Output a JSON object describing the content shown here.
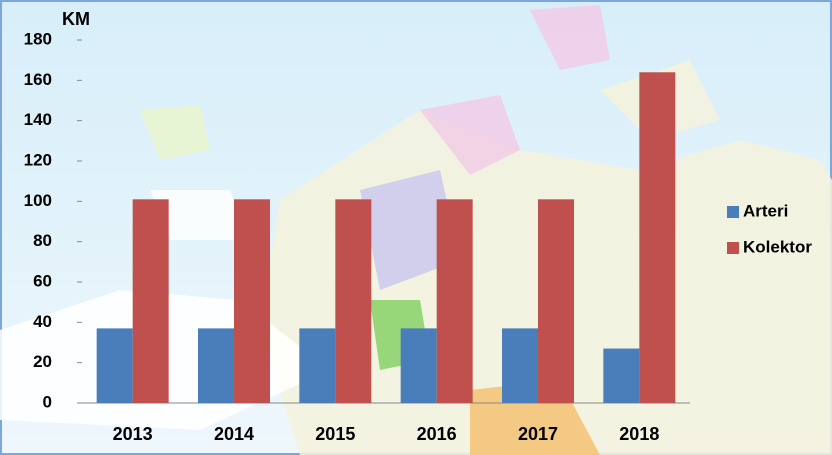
{
  "chart_data": {
    "type": "bar",
    "y_label": "KM",
    "categories": [
      "2013",
      "2014",
      "2015",
      "2016",
      "2017",
      "2018"
    ],
    "series": [
      {
        "name": "Arteri",
        "color": "#4a7ebb",
        "values": [
          37,
          37,
          37,
          37,
          37,
          27
        ]
      },
      {
        "name": "Kolektor",
        "color": "#c0504d",
        "values": [
          101,
          101,
          101,
          101,
          101,
          164
        ]
      }
    ],
    "ylim": [
      0,
      180
    ],
    "yticks": [
      0,
      20,
      40,
      60,
      80,
      100,
      120,
      140,
      160,
      180
    ],
    "legend": "right"
  }
}
